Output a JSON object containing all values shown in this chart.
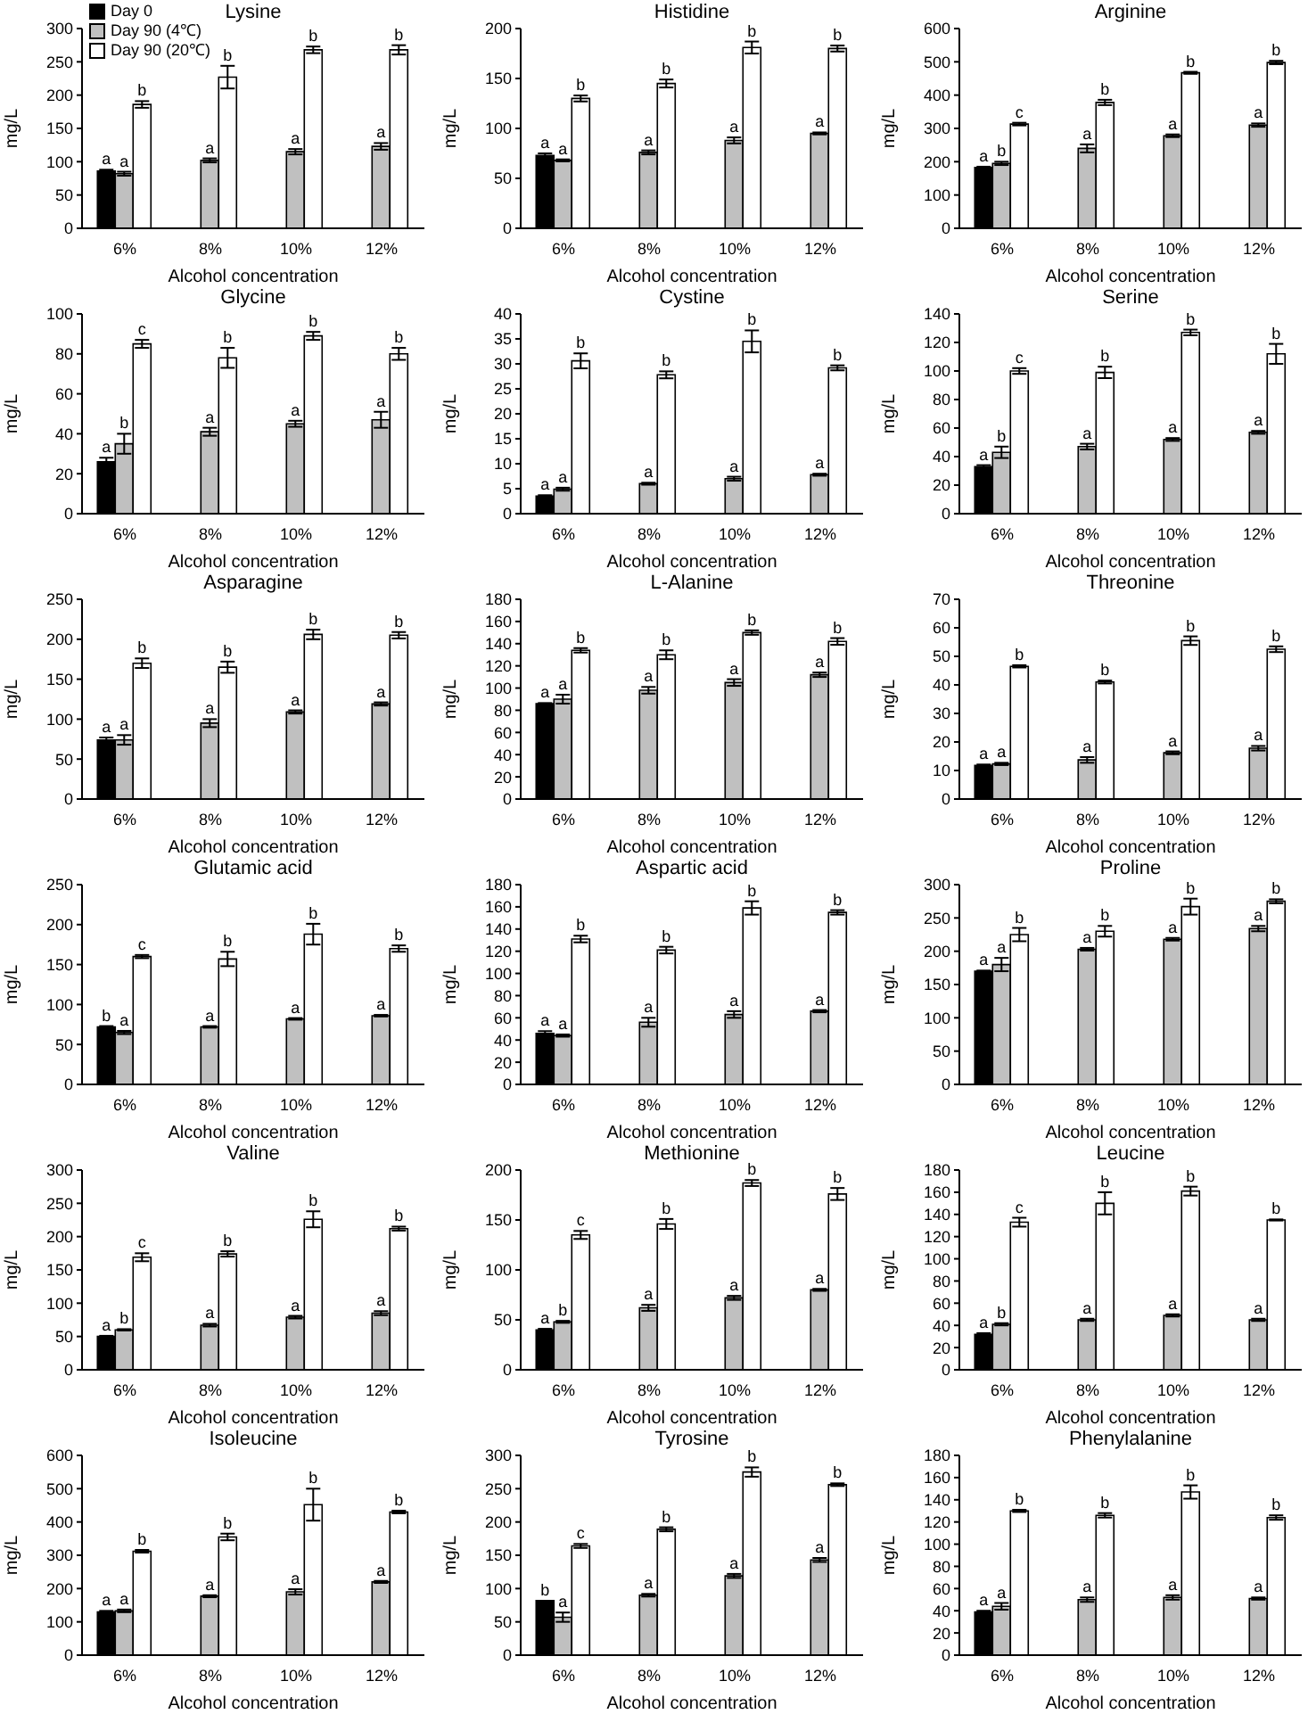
{
  "chart_data": [
    {
      "type": "bar",
      "title": "Lysine",
      "xlabel": "Alcohol concentration",
      "ylabel": "mg/L",
      "categories": [
        "6%",
        "8%",
        "10%",
        "12%"
      ],
      "ylim": [
        0,
        300
      ],
      "yticks": [
        0,
        50,
        100,
        150,
        200,
        250,
        300
      ],
      "legend": "top left",
      "series": [
        {
          "name": "Day 0",
          "color": "#000000",
          "values": [
            86,
            null,
            null,
            null
          ],
          "errors": [
            2,
            null,
            null,
            null
          ],
          "value_labels": [
            "a",
            null,
            null,
            null
          ]
        },
        {
          "name": "Day 90 (4℃)",
          "color": "#c0c0c0",
          "values": [
            82,
            102,
            115,
            123
          ],
          "errors": [
            3,
            3,
            4,
            5
          ],
          "value_labels": [
            "a",
            "a",
            "a",
            "a"
          ]
        },
        {
          "name": "Day 90 (20℃)",
          "color": "#ffffff",
          "values": [
            186,
            227,
            268,
            268
          ],
          "errors": [
            5,
            17,
            5,
            7
          ],
          "value_labels": [
            "b",
            "b",
            "b",
            "b"
          ]
        }
      ]
    },
    {
      "type": "bar",
      "title": "Histidine",
      "xlabel": "Alcohol concentration",
      "ylabel": "mg/L",
      "categories": [
        "6%",
        "8%",
        "10%",
        "12%"
      ],
      "ylim": [
        0,
        200
      ],
      "yticks": [
        0,
        50,
        100,
        150,
        200
      ],
      "series": [
        {
          "color": "#000000",
          "values": [
            73,
            null,
            null,
            null
          ],
          "errors": [
            2,
            null,
            null,
            null
          ],
          "value_labels": [
            "a",
            null,
            null,
            null
          ]
        },
        {
          "color": "#c0c0c0",
          "values": [
            68,
            76,
            88,
            95
          ],
          "errors": [
            1,
            2,
            3,
            1
          ],
          "value_labels": [
            "a",
            "a",
            "a",
            "a"
          ]
        },
        {
          "color": "#ffffff",
          "values": [
            130,
            145,
            181,
            180
          ],
          "errors": [
            3,
            4,
            6,
            3
          ],
          "value_labels": [
            "b",
            "b",
            "b",
            "b"
          ]
        }
      ]
    },
    {
      "type": "bar",
      "title": "Arginine",
      "xlabel": "Alcohol concentration",
      "ylabel": "mg/L",
      "categories": [
        "6%",
        "8%",
        "10%",
        "12%"
      ],
      "ylim": [
        0,
        600
      ],
      "yticks": [
        0,
        100,
        200,
        300,
        400,
        500,
        600
      ],
      "series": [
        {
          "color": "#000000",
          "values": [
            183,
            null,
            null,
            null
          ],
          "errors": [
            2,
            null,
            null,
            null
          ],
          "value_labels": [
            "a",
            null,
            null,
            null
          ]
        },
        {
          "color": "#c0c0c0",
          "values": [
            195,
            240,
            278,
            310
          ],
          "errors": [
            5,
            12,
            4,
            5
          ],
          "value_labels": [
            "b",
            "a",
            "a",
            "a"
          ]
        },
        {
          "color": "#ffffff",
          "values": [
            313,
            378,
            467,
            498
          ],
          "errors": [
            4,
            8,
            3,
            5
          ],
          "value_labels": [
            "c",
            "b",
            "b",
            "b"
          ]
        }
      ]
    },
    {
      "type": "bar",
      "title": "Glycine",
      "xlabel": "Alcohol concentration",
      "ylabel": "mg/L",
      "categories": [
        "6%",
        "8%",
        "10%",
        "12%"
      ],
      "ylim": [
        0,
        100
      ],
      "yticks": [
        0,
        20,
        40,
        60,
        80,
        100
      ],
      "series": [
        {
          "color": "#000000",
          "values": [
            26,
            null,
            null,
            null
          ],
          "errors": [
            2,
            null,
            null,
            null
          ],
          "value_labels": [
            "a",
            null,
            null,
            null
          ]
        },
        {
          "color": "#c0c0c0",
          "values": [
            35,
            41,
            45,
            47
          ],
          "errors": [
            5,
            2,
            1.5,
            4
          ],
          "value_labels": [
            "b",
            "a",
            "a",
            "a"
          ]
        },
        {
          "color": "#ffffff",
          "values": [
            85,
            78,
            89,
            80
          ],
          "errors": [
            2,
            5,
            2,
            3
          ],
          "value_labels": [
            "c",
            "b",
            "b",
            "b"
          ]
        }
      ]
    },
    {
      "type": "bar",
      "title": "Cystine",
      "xlabel": "Alcohol concentration",
      "ylabel": "mg/L",
      "categories": [
        "6%",
        "8%",
        "10%",
        "12%"
      ],
      "ylim": [
        0,
        40
      ],
      "yticks": [
        0,
        5,
        10,
        15,
        20,
        25,
        30,
        35,
        40
      ],
      "series": [
        {
          "color": "#000000",
          "values": [
            3.5,
            null,
            null,
            null
          ],
          "errors": [
            0.2,
            null,
            null,
            null
          ],
          "value_labels": [
            "a",
            null,
            null,
            null
          ]
        },
        {
          "color": "#c0c0c0",
          "values": [
            4.9,
            6,
            7,
            7.8
          ],
          "errors": [
            0.3,
            0.2,
            0.4,
            0.2
          ],
          "value_labels": [
            "a",
            "a",
            "a",
            "a"
          ]
        },
        {
          "color": "#ffffff",
          "values": [
            30.6,
            27.8,
            34.5,
            29.2
          ],
          "errors": [
            1.5,
            0.7,
            2.2,
            0.5
          ],
          "value_labels": [
            "b",
            "b",
            "b",
            "b"
          ]
        }
      ]
    },
    {
      "type": "bar",
      "title": "Serine",
      "xlabel": "Alcohol concentration",
      "ylabel": "mg/L",
      "categories": [
        "6%",
        "8%",
        "10%",
        "12%"
      ],
      "ylim": [
        0,
        140
      ],
      "yticks": [
        0,
        20,
        40,
        60,
        80,
        100,
        120,
        140
      ],
      "series": [
        {
          "color": "#000000",
          "values": [
            33,
            null,
            null,
            null
          ],
          "errors": [
            1,
            null,
            null,
            null
          ],
          "value_labels": [
            "a",
            null,
            null,
            null
          ]
        },
        {
          "color": "#c0c0c0",
          "values": [
            43,
            47,
            52,
            57
          ],
          "errors": [
            4,
            2,
            1,
            1
          ],
          "value_labels": [
            "b",
            "a",
            "a",
            "a"
          ]
        },
        {
          "color": "#ffffff",
          "values": [
            100,
            99,
            127,
            112
          ],
          "errors": [
            2,
            4,
            2,
            7
          ],
          "value_labels": [
            "c",
            "b",
            "b",
            "b"
          ]
        }
      ]
    },
    {
      "type": "bar",
      "title": "Asparagine",
      "xlabel": "Alcohol concentration",
      "ylabel": "mg/L",
      "categories": [
        "6%",
        "8%",
        "10%",
        "12%"
      ],
      "ylim": [
        0,
        250
      ],
      "yticks": [
        0,
        50,
        100,
        150,
        200,
        250
      ],
      "series": [
        {
          "color": "#000000",
          "values": [
            74,
            null,
            null,
            null
          ],
          "errors": [
            3,
            null,
            null,
            null
          ],
          "value_labels": [
            "a",
            null,
            null,
            null
          ]
        },
        {
          "color": "#c0c0c0",
          "values": [
            74,
            95,
            109,
            119
          ],
          "errors": [
            6,
            5,
            2,
            2
          ],
          "value_labels": [
            "a",
            "a",
            "a",
            "a"
          ]
        },
        {
          "color": "#ffffff",
          "values": [
            170,
            165,
            206,
            205
          ],
          "errors": [
            6,
            7,
            6,
            4
          ],
          "value_labels": [
            "b",
            "b",
            "b",
            "b"
          ]
        }
      ]
    },
    {
      "type": "bar",
      "title": "L-Alanine",
      "xlabel": "Alcohol concentration",
      "ylabel": "mg/L",
      "categories": [
        "6%",
        "8%",
        "10%",
        "12%"
      ],
      "ylim": [
        0,
        180
      ],
      "yticks": [
        0,
        20,
        40,
        60,
        80,
        100,
        120,
        140,
        160,
        180
      ],
      "series": [
        {
          "color": "#000000",
          "values": [
            86,
            null,
            null,
            null
          ],
          "errors": [
            0.5,
            null,
            null,
            null
          ],
          "value_labels": [
            "a",
            null,
            null,
            null
          ]
        },
        {
          "color": "#c0c0c0",
          "values": [
            90,
            98,
            105,
            112
          ],
          "errors": [
            4,
            3,
            3,
            2
          ],
          "value_labels": [
            "a",
            "a",
            "a",
            "a"
          ]
        },
        {
          "color": "#ffffff",
          "values": [
            134,
            130,
            150,
            142
          ],
          "errors": [
            2,
            4,
            2,
            3
          ],
          "value_labels": [
            "b",
            "b",
            "b",
            "b"
          ]
        }
      ]
    },
    {
      "type": "bar",
      "title": "Threonine",
      "xlabel": "Alcohol concentration",
      "ylabel": "mg/L",
      "categories": [
        "6%",
        "8%",
        "10%",
        "12%"
      ],
      "ylim": [
        0,
        70
      ],
      "yticks": [
        0,
        10,
        20,
        30,
        40,
        50,
        60,
        70
      ],
      "series": [
        {
          "color": "#000000",
          "values": [
            11.8,
            null,
            null,
            null
          ],
          "errors": [
            0.3,
            null,
            null,
            null
          ],
          "value_labels": [
            "a",
            null,
            null,
            null
          ]
        },
        {
          "color": "#c0c0c0",
          "values": [
            12.3,
            13.7,
            16.2,
            17.8
          ],
          "errors": [
            0.4,
            1,
            0.5,
            0.8
          ],
          "value_labels": [
            "a",
            "a",
            "a",
            "a"
          ]
        },
        {
          "color": "#ffffff",
          "values": [
            46.5,
            41,
            55.5,
            52.5
          ],
          "errors": [
            0.4,
            0.5,
            1.5,
            1
          ],
          "value_labels": [
            "b",
            "b",
            "b",
            "b"
          ]
        }
      ]
    },
    {
      "type": "bar",
      "title": "Glutamic acid",
      "xlabel": "Alcohol concentration",
      "ylabel": "mg/L",
      "categories": [
        "6%",
        "8%",
        "10%",
        "12%"
      ],
      "ylim": [
        0,
        250
      ],
      "yticks": [
        0,
        50,
        100,
        150,
        200,
        250
      ],
      "series": [
        {
          "color": "#000000",
          "values": [
            72,
            null,
            null,
            null
          ],
          "errors": [
            1,
            null,
            null,
            null
          ],
          "value_labels": [
            "b",
            null,
            null,
            null
          ]
        },
        {
          "color": "#c0c0c0",
          "values": [
            65,
            72,
            82,
            86
          ],
          "errors": [
            2,
            1,
            1,
            1
          ],
          "value_labels": [
            "a",
            "a",
            "a",
            "a"
          ]
        },
        {
          "color": "#ffffff",
          "values": [
            160,
            157,
            188,
            170
          ],
          "errors": [
            2,
            9,
            13,
            4
          ],
          "value_labels": [
            "c",
            "b",
            "b",
            "b"
          ]
        }
      ]
    },
    {
      "type": "bar",
      "title": "Aspartic acid",
      "xlabel": "Alcohol concentration",
      "ylabel": "mg/L",
      "categories": [
        "6%",
        "8%",
        "10%",
        "12%"
      ],
      "ylim": [
        0,
        180
      ],
      "yticks": [
        0,
        20,
        40,
        60,
        80,
        100,
        120,
        140,
        160,
        180
      ],
      "series": [
        {
          "color": "#000000",
          "values": [
            46,
            null,
            null,
            null
          ],
          "errors": [
            2,
            null,
            null,
            null
          ],
          "value_labels": [
            "a",
            null,
            null,
            null
          ]
        },
        {
          "color": "#c0c0c0",
          "values": [
            44,
            56,
            63,
            66
          ],
          "errors": [
            1,
            4,
            3,
            1
          ],
          "value_labels": [
            "a",
            "a",
            "a",
            "a"
          ]
        },
        {
          "color": "#ffffff",
          "values": [
            131,
            121,
            159,
            155
          ],
          "errors": [
            3,
            3,
            6,
            2
          ],
          "value_labels": [
            "b",
            "b",
            "b",
            "b"
          ]
        }
      ]
    },
    {
      "type": "bar",
      "title": "Proline",
      "xlabel": "Alcohol concentration",
      "ylabel": "mg/L",
      "categories": [
        "6%",
        "8%",
        "10%",
        "12%"
      ],
      "ylim": [
        0,
        300
      ],
      "yticks": [
        0,
        50,
        100,
        150,
        200,
        250,
        300
      ],
      "series": [
        {
          "color": "#000000",
          "values": [
            170,
            null,
            null,
            null
          ],
          "errors": [
            1,
            null,
            null,
            null
          ],
          "value_labels": [
            "a",
            null,
            null,
            null
          ]
        },
        {
          "color": "#c0c0c0",
          "values": [
            180,
            203,
            218,
            234
          ],
          "errors": [
            10,
            2,
            2,
            4
          ],
          "value_labels": [
            "a",
            "a",
            "a",
            "a"
          ]
        },
        {
          "color": "#ffffff",
          "values": [
            225,
            230,
            267,
            275
          ],
          "errors": [
            10,
            8,
            12,
            3
          ],
          "value_labels": [
            "b",
            "b",
            "b",
            "b"
          ]
        }
      ]
    },
    {
      "type": "bar",
      "title": "Valine",
      "xlabel": "Alcohol concentration",
      "ylabel": "mg/L",
      "categories": [
        "6%",
        "8%",
        "10%",
        "12%"
      ],
      "ylim": [
        0,
        300
      ],
      "yticks": [
        0,
        50,
        100,
        150,
        200,
        250,
        300
      ],
      "series": [
        {
          "color": "#000000",
          "values": [
            50,
            null,
            null,
            null
          ],
          "errors": [
            1,
            null,
            null,
            null
          ],
          "value_labels": [
            "a",
            null,
            null,
            null
          ]
        },
        {
          "color": "#c0c0c0",
          "values": [
            60,
            67,
            79,
            85
          ],
          "errors": [
            1,
            2,
            2,
            3
          ],
          "value_labels": [
            "b",
            "a",
            "a",
            "a"
          ]
        },
        {
          "color": "#ffffff",
          "values": [
            169,
            174,
            226,
            212
          ],
          "errors": [
            6,
            4,
            12,
            3
          ],
          "value_labels": [
            "c",
            "b",
            "b",
            "b"
          ]
        }
      ]
    },
    {
      "type": "bar",
      "title": "Methionine",
      "xlabel": "Alcohol concentration",
      "ylabel": "mg/L",
      "categories": [
        "6%",
        "8%",
        "10%",
        "12%"
      ],
      "ylim": [
        0,
        200
      ],
      "yticks": [
        0,
        50,
        100,
        150,
        200
      ],
      "series": [
        {
          "color": "#000000",
          "values": [
            40,
            null,
            null,
            null
          ],
          "errors": [
            1,
            null,
            null,
            null
          ],
          "value_labels": [
            "a",
            null,
            null,
            null
          ]
        },
        {
          "color": "#c0c0c0",
          "values": [
            48,
            62,
            72,
            80
          ],
          "errors": [
            1,
            3,
            2,
            1
          ],
          "value_labels": [
            "b",
            "a",
            "a",
            "a"
          ]
        },
        {
          "color": "#ffffff",
          "values": [
            135,
            146,
            187,
            176
          ],
          "errors": [
            4,
            5,
            3,
            6
          ],
          "value_labels": [
            "c",
            "b",
            "b",
            "b"
          ]
        }
      ]
    },
    {
      "type": "bar",
      "title": "Leucine",
      "xlabel": "Alcohol concentration",
      "ylabel": "mg/L",
      "categories": [
        "6%",
        "8%",
        "10%",
        "12%"
      ],
      "ylim": [
        0,
        180
      ],
      "yticks": [
        0,
        20,
        40,
        60,
        80,
        100,
        120,
        140,
        160,
        180
      ],
      "series": [
        {
          "color": "#000000",
          "values": [
            32,
            null,
            null,
            null
          ],
          "errors": [
            1,
            null,
            null,
            null
          ],
          "value_labels": [
            "a",
            null,
            null,
            null
          ]
        },
        {
          "color": "#c0c0c0",
          "values": [
            41,
            45,
            49,
            45
          ],
          "errors": [
            1,
            1,
            1,
            1
          ],
          "value_labels": [
            "b",
            "a",
            "a",
            "a"
          ]
        },
        {
          "color": "#ffffff",
          "values": [
            133,
            150,
            161,
            135
          ],
          "errors": [
            4,
            10,
            4,
            0.5
          ],
          "value_labels": [
            "c",
            "b",
            "b",
            "b"
          ]
        }
      ]
    },
    {
      "type": "bar",
      "title": "Isoleucine",
      "xlabel": "Alcohol concentration",
      "ylabel": "mg/L",
      "categories": [
        "6%",
        "8%",
        "10%",
        "12%"
      ],
      "ylim": [
        0,
        600
      ],
      "yticks": [
        0,
        100,
        200,
        300,
        400,
        500,
        600
      ],
      "series": [
        {
          "color": "#000000",
          "values": [
            130,
            null,
            null,
            null
          ],
          "errors": [
            3,
            null,
            null,
            null
          ],
          "value_labels": [
            "a",
            null,
            null,
            null
          ]
        },
        {
          "color": "#c0c0c0",
          "values": [
            133,
            177,
            190,
            220
          ],
          "errors": [
            4,
            3,
            8,
            3
          ],
          "value_labels": [
            "a",
            "a",
            "a",
            "a"
          ]
        },
        {
          "color": "#ffffff",
          "values": [
            312,
            355,
            452,
            430
          ],
          "errors": [
            4,
            10,
            48,
            4
          ],
          "value_labels": [
            "b",
            "b",
            "b",
            "b"
          ]
        }
      ]
    },
    {
      "type": "bar",
      "title": "Tyrosine",
      "xlabel": "Alcohol concentration",
      "ylabel": "mg/L",
      "categories": [
        "6%",
        "8%",
        "10%",
        "12%"
      ],
      "ylim": [
        0,
        300
      ],
      "yticks": [
        0,
        50,
        100,
        150,
        200,
        250,
        300
      ],
      "series": [
        {
          "color": "#000000",
          "values": [
            82,
            null,
            null,
            null
          ],
          "errors": [
            null,
            null,
            null,
            null
          ],
          "value_labels": [
            "b",
            null,
            null,
            null
          ]
        },
        {
          "color": "#c0c0c0",
          "values": [
            57,
            90,
            119,
            143
          ],
          "errors": [
            7,
            2,
            3,
            3
          ],
          "value_labels": [
            "a",
            "a",
            "a",
            "a"
          ]
        },
        {
          "color": "#ffffff",
          "values": [
            164,
            189,
            275,
            256
          ],
          "errors": [
            3,
            3,
            7,
            2
          ],
          "value_labels": [
            "c",
            "b",
            "b",
            "b"
          ]
        }
      ]
    },
    {
      "type": "bar",
      "title": "Phenylalanine",
      "xlabel": "Alcohol concentration",
      "ylabel": "mg/L",
      "categories": [
        "6%",
        "8%",
        "10%",
        "12%"
      ],
      "ylim": [
        0,
        180
      ],
      "yticks": [
        0,
        20,
        40,
        60,
        80,
        100,
        120,
        140,
        160,
        180
      ],
      "series": [
        {
          "color": "#000000",
          "values": [
            39,
            null,
            null,
            null
          ],
          "errors": [
            1,
            null,
            null,
            null
          ],
          "value_labels": [
            "a",
            null,
            null,
            null
          ]
        },
        {
          "color": "#c0c0c0",
          "values": [
            44,
            50,
            52,
            51
          ],
          "errors": [
            3,
            2,
            2,
            1
          ],
          "value_labels": [
            "a",
            "a",
            "a",
            "a"
          ]
        },
        {
          "color": "#ffffff",
          "values": [
            130,
            126,
            147,
            124
          ],
          "errors": [
            1,
            2,
            6,
            2
          ],
          "value_labels": [
            "b",
            "b",
            "b",
            "b"
          ]
        }
      ]
    }
  ]
}
